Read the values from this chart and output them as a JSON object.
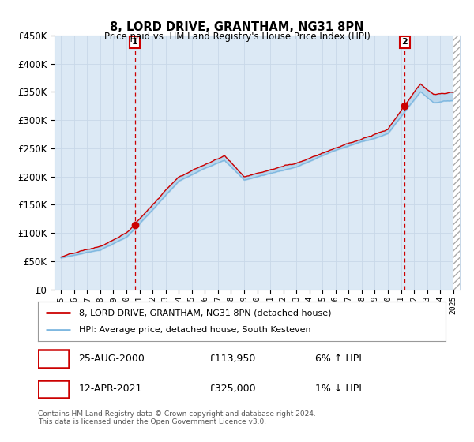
{
  "title": "8, LORD DRIVE, GRANTHAM, NG31 8PN",
  "subtitle": "Price paid vs. HM Land Registry's House Price Index (HPI)",
  "bg_color": "#dce9f5",
  "x_start_year": 1995,
  "x_end_year": 2025,
  "y_min": 0,
  "y_max": 450000,
  "y_ticks": [
    0,
    50000,
    100000,
    150000,
    200000,
    250000,
    300000,
    350000,
    400000,
    450000
  ],
  "sale1_date": 2000.65,
  "sale1_price": 113950,
  "sale1_label": "1",
  "sale2_date": 2021.28,
  "sale2_price": 325000,
  "sale2_label": "2",
  "legend_line1": "8, LORD DRIVE, GRANTHAM, NG31 8PN (detached house)",
  "legend_line2": "HPI: Average price, detached house, South Kesteven",
  "annot1_date": "25-AUG-2000",
  "annot1_price": "£113,950",
  "annot1_hpi": "6% ↑ HPI",
  "annot2_date": "12-APR-2021",
  "annot2_price": "£325,000",
  "annot2_hpi": "1% ↓ HPI",
  "footer": "Contains HM Land Registry data © Crown copyright and database right 2024.\nThis data is licensed under the Open Government Licence v3.0.",
  "hpi_color": "#7fb8e0",
  "price_color": "#cc0000",
  "sale_marker_color": "#cc0000",
  "dashed_line_color": "#cc0000",
  "grid_color": "#c8d8e8",
  "box_color": "#cc0000",
  "hatch_color": "#c8d8e8"
}
